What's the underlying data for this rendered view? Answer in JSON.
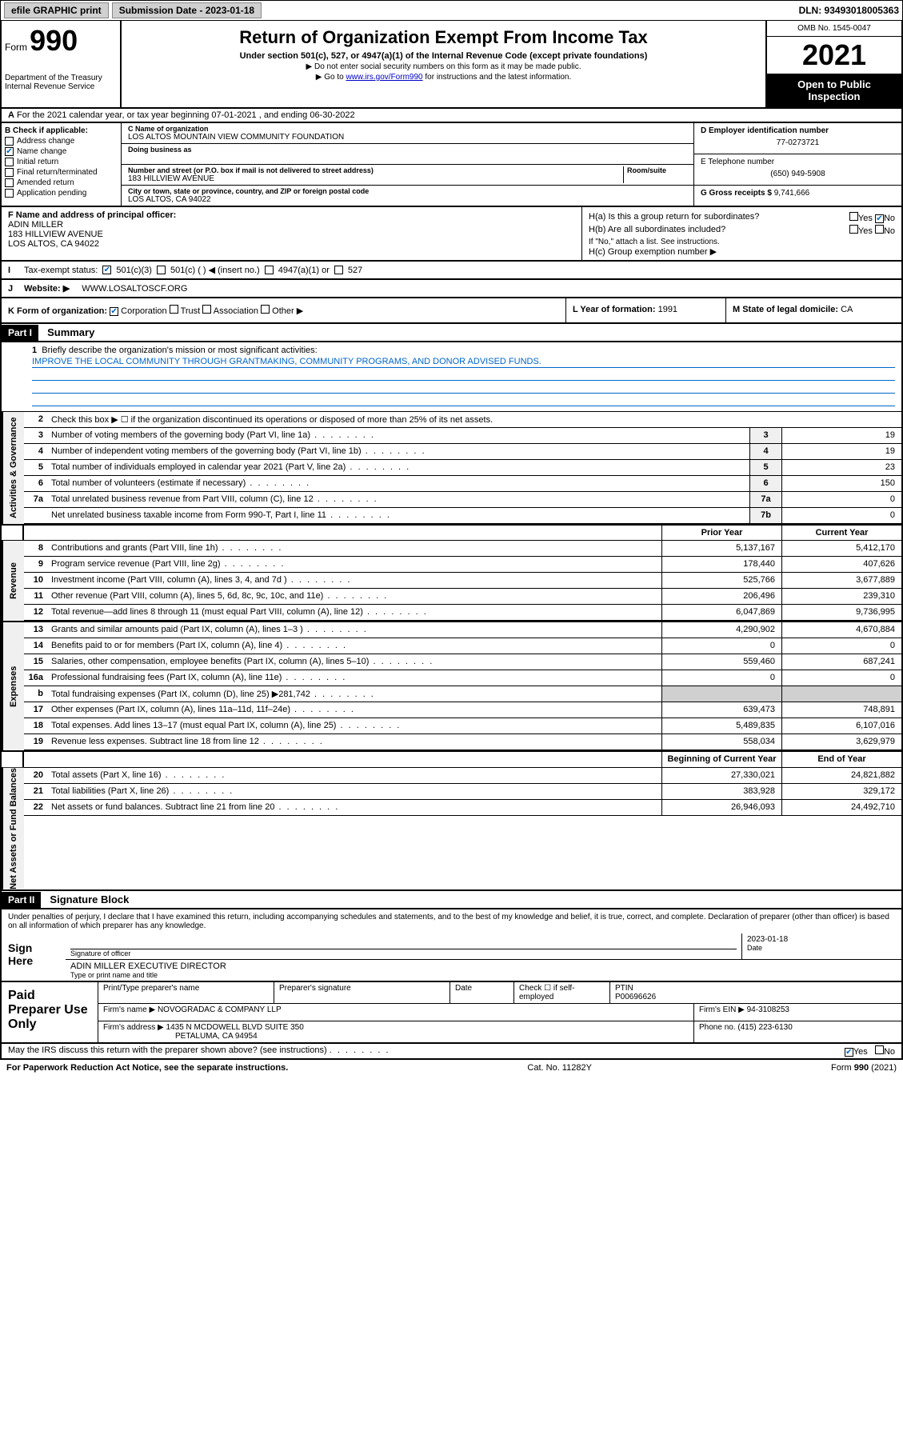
{
  "top": {
    "efile": "efile GRAPHIC print",
    "submission_label": "Submission Date - 2023-01-18",
    "dln": "DLN: 93493018005363"
  },
  "header": {
    "form_prefix": "Form",
    "form_num": "990",
    "title": "Return of Organization Exempt From Income Tax",
    "subtitle": "Under section 501(c), 527, or 4947(a)(1) of the Internal Revenue Code (except private foundations)",
    "instr1": "▶ Do not enter social security numbers on this form as it may be made public.",
    "instr2_pre": "▶ Go to ",
    "instr2_link": "www.irs.gov/Form990",
    "instr2_post": " for instructions and the latest information.",
    "dept": "Department of the Treasury\nInternal Revenue Service",
    "omb": "OMB No. 1545-0047",
    "year": "2021",
    "inspect": "Open to Public Inspection"
  },
  "A": {
    "text": "For the 2021 calendar year, or tax year beginning 07-01-2021   , and ending 06-30-2022"
  },
  "B": {
    "title": "B Check if applicable:",
    "items": [
      "Address change",
      "Name change",
      "Initial return",
      "Final return/terminated",
      "Amended return",
      "Application pending"
    ],
    "checked_idx": 1
  },
  "C": {
    "name_lbl": "C Name of organization",
    "name": "LOS ALTOS MOUNTAIN VIEW COMMUNITY FOUNDATION",
    "dba_lbl": "Doing business as",
    "addr_lbl": "Number and street (or P.O. box if mail is not delivered to street address)",
    "addr": "183 HILLVIEW AVENUE",
    "room_lbl": "Room/suite",
    "city_lbl": "City or town, state or province, country, and ZIP or foreign postal code",
    "city": "LOS ALTOS, CA  94022"
  },
  "D": {
    "lbl": "D Employer identification number",
    "val": "77-0273721"
  },
  "E": {
    "lbl": "E Telephone number",
    "val": "(650) 949-5908"
  },
  "G": {
    "lbl": "G Gross receipts $",
    "val": "9,741,666"
  },
  "F": {
    "lbl": "F  Name and address of principal officer:",
    "name": "ADIN MILLER",
    "addr1": "183 HILLVIEW AVENUE",
    "addr2": "LOS ALTOS, CA  94022"
  },
  "H": {
    "a": "H(a)  Is this a group return for subordinates?",
    "b": "H(b)  Are all subordinates included?",
    "b_note": "If \"No,\" attach a list. See instructions.",
    "c": "H(c)  Group exemption number ▶",
    "yes": "Yes",
    "no": "No"
  },
  "I": {
    "lbl": "Tax-exempt status:",
    "opts": [
      "501(c)(3)",
      "501(c) (  ) ◀ (insert no.)",
      "4947(a)(1) or",
      "527"
    ]
  },
  "J": {
    "lbl": "Website: ▶",
    "val": "WWW.LOSALTOSCF.ORG"
  },
  "K": {
    "lbl": "K Form of organization:",
    "opts": [
      "Corporation",
      "Trust",
      "Association",
      "Other ▶"
    ]
  },
  "L": {
    "lbl": "L Year of formation:",
    "val": "1991"
  },
  "M": {
    "lbl": "M State of legal domicile:",
    "val": "CA"
  },
  "part1": {
    "hdr": "Part I",
    "title": "Summary",
    "line1_lbl": "Briefly describe the organization's mission or most significant activities:",
    "mission": "IMPROVE THE LOCAL COMMUNITY THROUGH GRANTMAKING, COMMUNITY PROGRAMS, AND DONOR ADVISED FUNDS.",
    "line2": "Check this box ▶ ☐  if the organization discontinued its operations or disposed of more than 25% of its net assets.",
    "tabs": {
      "gov": "Activities & Governance",
      "rev": "Revenue",
      "exp": "Expenses",
      "net": "Net Assets or Fund Balances"
    },
    "col_prior": "Prior Year",
    "col_curr": "Current Year",
    "col_begin": "Beginning of Current Year",
    "col_end": "End of Year",
    "rows_gov": [
      {
        "n": "3",
        "t": "Number of voting members of the governing body (Part VI, line 1a)",
        "box": "3",
        "v": "19"
      },
      {
        "n": "4",
        "t": "Number of independent voting members of the governing body (Part VI, line 1b)",
        "box": "4",
        "v": "19"
      },
      {
        "n": "5",
        "t": "Total number of individuals employed in calendar year 2021 (Part V, line 2a)",
        "box": "5",
        "v": "23"
      },
      {
        "n": "6",
        "t": "Total number of volunteers (estimate if necessary)",
        "box": "6",
        "v": "150"
      },
      {
        "n": "7a",
        "t": "Total unrelated business revenue from Part VIII, column (C), line 12",
        "box": "7a",
        "v": "0"
      },
      {
        "n": "",
        "t": "Net unrelated business taxable income from Form 990-T, Part I, line 11",
        "box": "7b",
        "v": "0"
      }
    ],
    "rows_rev": [
      {
        "n": "8",
        "t": "Contributions and grants (Part VIII, line 1h)",
        "p": "5,137,167",
        "c": "5,412,170"
      },
      {
        "n": "9",
        "t": "Program service revenue (Part VIII, line 2g)",
        "p": "178,440",
        "c": "407,626"
      },
      {
        "n": "10",
        "t": "Investment income (Part VIII, column (A), lines 3, 4, and 7d )",
        "p": "525,766",
        "c": "3,677,889"
      },
      {
        "n": "11",
        "t": "Other revenue (Part VIII, column (A), lines 5, 6d, 8c, 9c, 10c, and 11e)",
        "p": "206,496",
        "c": "239,310"
      },
      {
        "n": "12",
        "t": "Total revenue—add lines 8 through 11 (must equal Part VIII, column (A), line 12)",
        "p": "6,047,869",
        "c": "9,736,995"
      }
    ],
    "rows_exp": [
      {
        "n": "13",
        "t": "Grants and similar amounts paid (Part IX, column (A), lines 1–3 )",
        "p": "4,290,902",
        "c": "4,670,884"
      },
      {
        "n": "14",
        "t": "Benefits paid to or for members (Part IX, column (A), line 4)",
        "p": "0",
        "c": "0"
      },
      {
        "n": "15",
        "t": "Salaries, other compensation, employee benefits (Part IX, column (A), lines 5–10)",
        "p": "559,460",
        "c": "687,241"
      },
      {
        "n": "16a",
        "t": "Professional fundraising fees (Part IX, column (A), line 11e)",
        "p": "0",
        "c": "0"
      },
      {
        "n": "b",
        "t": "Total fundraising expenses (Part IX, column (D), line 25) ▶281,742",
        "p": "",
        "c": "",
        "shade": true
      },
      {
        "n": "17",
        "t": "Other expenses (Part IX, column (A), lines 11a–11d, 11f–24e)",
        "p": "639,473",
        "c": "748,891"
      },
      {
        "n": "18",
        "t": "Total expenses. Add lines 13–17 (must equal Part IX, column (A), line 25)",
        "p": "5,489,835",
        "c": "6,107,016"
      },
      {
        "n": "19",
        "t": "Revenue less expenses. Subtract line 18 from line 12",
        "p": "558,034",
        "c": "3,629,979"
      }
    ],
    "rows_net": [
      {
        "n": "20",
        "t": "Total assets (Part X, line 16)",
        "p": "27,330,021",
        "c": "24,821,882"
      },
      {
        "n": "21",
        "t": "Total liabilities (Part X, line 26)",
        "p": "383,928",
        "c": "329,172"
      },
      {
        "n": "22",
        "t": "Net assets or fund balances. Subtract line 21 from line 20",
        "p": "26,946,093",
        "c": "24,492,710"
      }
    ]
  },
  "part2": {
    "hdr": "Part II",
    "title": "Signature Block",
    "decl": "Under penalties of perjury, I declare that I have examined this return, including accompanying schedules and statements, and to the best of my knowledge and belief, it is true, correct, and complete. Declaration of preparer (other than officer) is based on all information of which preparer has any knowledge.",
    "sign_here": "Sign Here",
    "sig_officer": "Signature of officer",
    "sig_date": "2023-01-18",
    "date_lbl": "Date",
    "name_title": "ADIN MILLER  EXECUTIVE DIRECTOR",
    "name_lbl": "Type or print name and title"
  },
  "prep": {
    "lbl": "Paid Preparer Use Only",
    "h1": "Print/Type preparer's name",
    "h2": "Preparer's signature",
    "h3": "Date",
    "h4_pre": "Check ☐ if self-employed",
    "h5": "PTIN",
    "ptin": "P00696626",
    "firm_name_lbl": "Firm's name    ▶",
    "firm_name": "NOVOGRADAC & COMPANY LLP",
    "firm_ein_lbl": "Firm's EIN ▶",
    "firm_ein": "94-3108253",
    "firm_addr_lbl": "Firm's address ▶",
    "firm_addr1": "1435 N MCDOWELL BLVD SUITE 350",
    "firm_addr2": "PETALUMA, CA  94954",
    "phone_lbl": "Phone no.",
    "phone": "(415) 223-6130"
  },
  "discuss": {
    "q": "May the IRS discuss this return with the preparer shown above? (see instructions)",
    "yes": "Yes",
    "no": "No"
  },
  "footer": {
    "left": "For Paperwork Reduction Act Notice, see the separate instructions.",
    "mid": "Cat. No. 11282Y",
    "right": "Form 990 (2021)"
  }
}
